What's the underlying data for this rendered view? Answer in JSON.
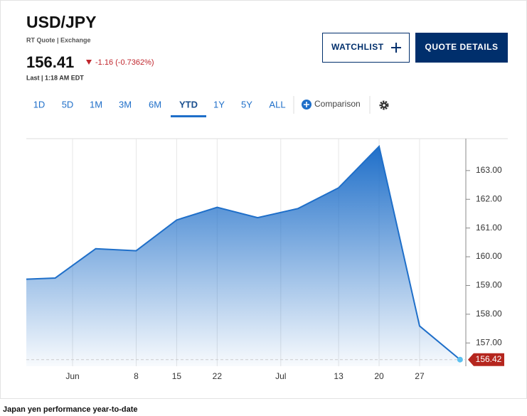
{
  "header": {
    "symbol": "USD/JPY",
    "source": "RT Quote | Exchange"
  },
  "quote": {
    "price": "156.41",
    "change": "-1.16 (-0.7362%)",
    "time": "Last | 1:18 AM EDT"
  },
  "buttons": {
    "watchlist": "WATCHLIST",
    "details": "QUOTE DETAILS"
  },
  "tabs": [
    "1D",
    "5D",
    "1M",
    "3M",
    "6M",
    "YTD",
    "1Y",
    "5Y",
    "ALL"
  ],
  "active_tab": "YTD",
  "comparison": "Comparison",
  "caption": "Japan yen performance year-to-date",
  "chart_data": {
    "type": "area",
    "x": [
      -11,
      -6,
      1,
      8,
      15,
      22,
      29,
      36,
      43,
      50,
      57,
      64
    ],
    "series": [
      {
        "name": "USD/JPY",
        "color": "#1f6fc9",
        "values": [
          159.22,
          159.26,
          160.28,
          160.21,
          161.28,
          161.72,
          161.36,
          161.68,
          162.4,
          163.84,
          157.59,
          156.42
        ]
      }
    ],
    "last_label": "156.42",
    "xlim": [
      -11,
      65
    ],
    "xticks": [
      {
        "value": -3,
        "label": "Jun"
      },
      8,
      15,
      22,
      {
        "value": 33,
        "label": "Jul"
      },
      {
        "value": 43,
        "label": "13"
      },
      {
        "value": 50,
        "label": "20"
      },
      {
        "value": 57,
        "label": "27"
      }
    ],
    "ylim": [
      156.19,
      164.11
    ],
    "yticks": [
      {
        "value": 157,
        "label": "157.00"
      },
      {
        "value": 158,
        "label": "158.00"
      },
      {
        "value": 159,
        "label": "159.00"
      },
      {
        "value": 160,
        "label": "160.00"
      },
      {
        "value": 161,
        "label": "161.00"
      },
      {
        "value": 162,
        "label": "162.00"
      },
      {
        "value": 163,
        "label": "163.00"
      }
    ],
    "yaxis_side": "right",
    "grid": "x"
  }
}
